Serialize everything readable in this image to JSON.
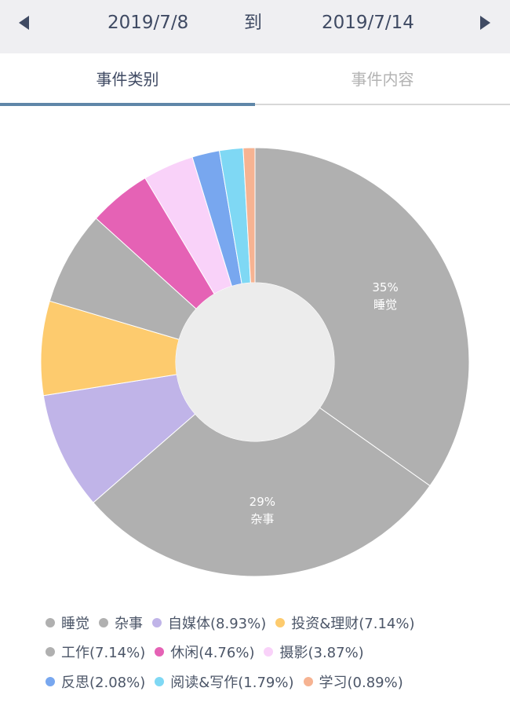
{
  "header": {
    "prev_icon": "triangle-left-icon",
    "next_icon": "triangle-right-icon",
    "start_date": "2019/7/8",
    "separator": "到",
    "end_date": "2019/7/14"
  },
  "tabs": [
    {
      "label": "事件类别",
      "active": true
    },
    {
      "label": "事件内容",
      "active": false
    }
  ],
  "chart_data": {
    "type": "pie",
    "donut": true,
    "slices": [
      {
        "label": "睡觉",
        "value": 35.0,
        "color": "#b0b0b0",
        "show_label": true,
        "pct_text": "35%"
      },
      {
        "label": "杂事",
        "value": 29.0,
        "color": "#b0b0b0",
        "show_label": true,
        "pct_text": "29%"
      },
      {
        "label": "自媒体",
        "value": 8.93,
        "color": "#c0b4e8"
      },
      {
        "label": "投资&理财",
        "value": 7.14,
        "color": "#fdcb6e"
      },
      {
        "label": "工作",
        "value": 7.14,
        "color": "#b0b0b0"
      },
      {
        "label": "休闲",
        "value": 4.76,
        "color": "#e562b5"
      },
      {
        "label": "摄影",
        "value": 3.87,
        "color": "#f9d2f9"
      },
      {
        "label": "反思",
        "value": 2.08,
        "color": "#78a7ef"
      },
      {
        "label": "阅读&写作",
        "value": 1.79,
        "color": "#7fd8f4"
      },
      {
        "label": "学习",
        "value": 0.89,
        "color": "#f6b392"
      }
    ]
  },
  "legend": [
    [
      {
        "text": "睡觉",
        "color": "#b0b0b0"
      },
      {
        "text": "杂事",
        "color": "#b0b0b0"
      },
      {
        "text": "自媒体(8.93%)",
        "color": "#c0b4e8"
      },
      {
        "text": "投资&理财(7.14%)",
        "color": "#fdcb6e"
      }
    ],
    [
      {
        "text": "工作(7.14%)",
        "color": "#b0b0b0"
      },
      {
        "text": "休闲(4.76%)",
        "color": "#e562b5"
      },
      {
        "text": "摄影(3.87%)",
        "color": "#f9d2f9"
      }
    ],
    [
      {
        "text": "反思(2.08%)",
        "color": "#78a7ef"
      },
      {
        "text": "阅读&写作(1.79%)",
        "color": "#7fd8f4"
      },
      {
        "text": "学习(0.89%)",
        "color": "#f6b392"
      }
    ]
  ]
}
